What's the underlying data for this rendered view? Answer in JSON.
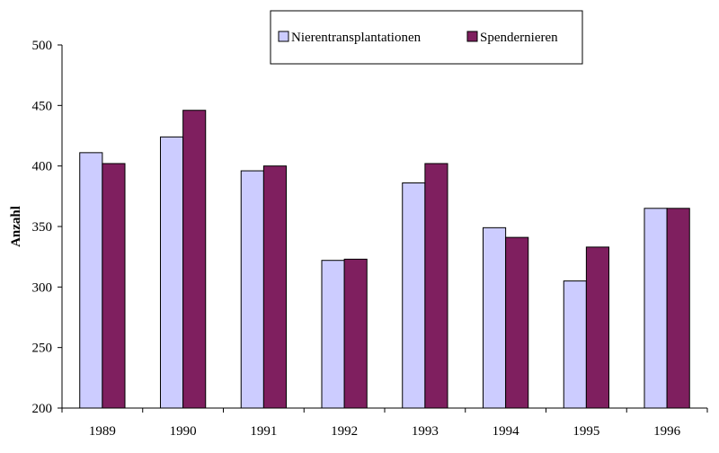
{
  "chart_data": {
    "type": "bar",
    "categories": [
      "1989",
      "1990",
      "1991",
      "1992",
      "1993",
      "1994",
      "1995",
      "1996"
    ],
    "series": [
      {
        "name": "Nierentransplantationen",
        "color": "#ccccff",
        "values": [
          411,
          424,
          396,
          322,
          386,
          349,
          305,
          365
        ]
      },
      {
        "name": "Spendernieren",
        "color": "#7f1f5f",
        "values": [
          402,
          446,
          400,
          323,
          402,
          341,
          333,
          365
        ]
      }
    ],
    "title": "",
    "xlabel": "",
    "ylabel": "Anzahl",
    "ylim": [
      200,
      500
    ],
    "yticks": [
      "200",
      "250",
      "300",
      "350",
      "400",
      "450",
      "500"
    ],
    "grid": false,
    "legend_position": "top-right"
  }
}
